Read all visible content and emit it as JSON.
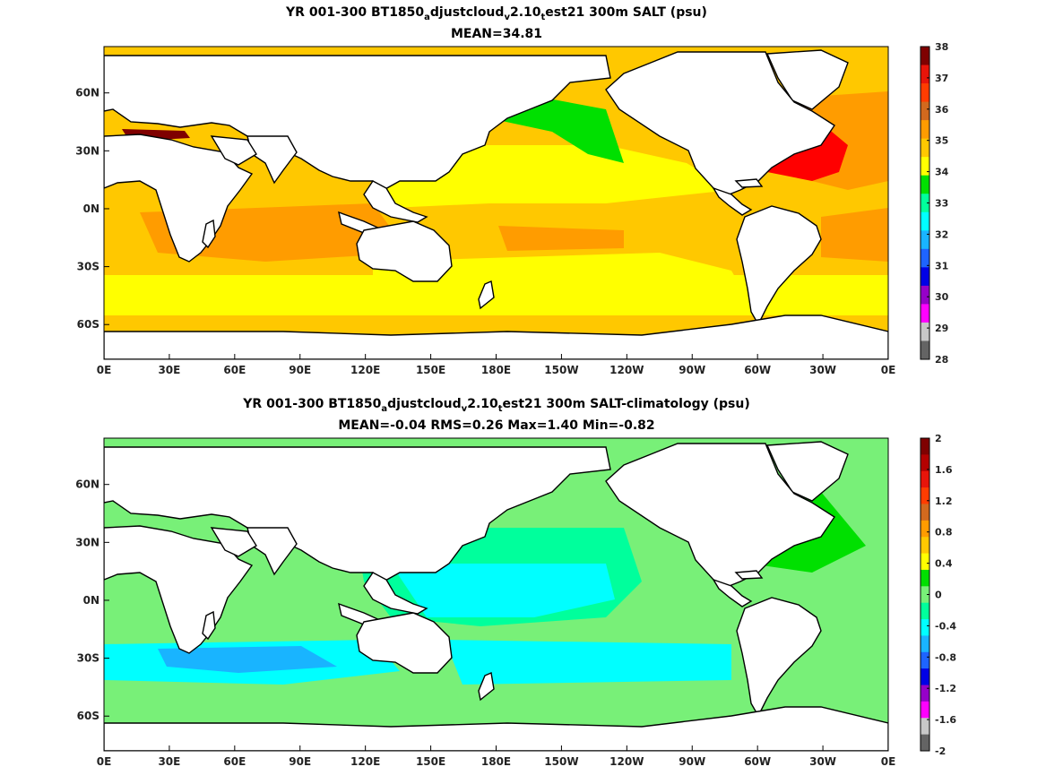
{
  "panels": [
    {
      "title_parts": [
        "YR 001-300 BT1850",
        "a",
        "djustcloud",
        "v",
        "2.10",
        "t",
        "est21 300m SALT (psu)"
      ],
      "subtitle": "MEAN=34.81"
    },
    {
      "title_parts": [
        "YR 001-300 BT1850",
        "a",
        "djustcloud",
        "v",
        "2.10",
        "t",
        "est21 300m SALT-climatology (psu)"
      ],
      "subtitle": "MEAN=-0.04   RMS=0.26   Max=1.40   Min=-0.82"
    }
  ],
  "x_ticks": [
    "0E",
    "30E",
    "60E",
    "90E",
    "120E",
    "150E",
    "180E",
    "150W",
    "120W",
    "90W",
    "60W",
    "30W",
    "0E"
  ],
  "y_ticks": [
    "60N",
    "30N",
    "0N",
    "30S",
    "60S"
  ],
  "colorbar_top": {
    "labels": [
      "38",
      "37",
      "36",
      "35",
      "34",
      "33",
      "32",
      "31",
      "30",
      "29",
      "28"
    ],
    "colors": [
      "#7f0000",
      "#e8140a",
      "#ff3c00",
      "#d2691e",
      "#ff9c00",
      "#ffc800",
      "#ffff00",
      "#00e000",
      "#00ff9c",
      "#00ffff",
      "#19b4ff",
      "#1e64ff",
      "#0000e6",
      "#9600c8",
      "#ff00ff",
      "#c8c8c8",
      "#646464"
    ]
  },
  "colorbar_bottom": {
    "labels": [
      "2",
      "1.6",
      "1.2",
      "0.8",
      "0.4",
      "0",
      "-0.4",
      "-0.8",
      "-1.2",
      "-1.6",
      "-2"
    ],
    "colors": [
      "#7f0000",
      "#b40000",
      "#e8140a",
      "#ff3c00",
      "#d2691e",
      "#ff9c00",
      "#ffc800",
      "#ffff00",
      "#00e000",
      "#78f078",
      "#00ff9c",
      "#00ffff",
      "#19b4ff",
      "#1e64ff",
      "#0000e6",
      "#9600c8",
      "#ff00ff",
      "#c8c8c8",
      "#646464"
    ]
  },
  "map_colors": {
    "ocean_top_main": "#ffc800",
    "ocean_top_tropical": "#ffff00",
    "ocean_top_salty": "#ff9c00",
    "ocean_top_north_atlantic": "#ff0000",
    "ocean_top_pacific_fresh": "#00e000",
    "ocean_bottom_main": "#78f078",
    "ocean_bottom_negative": "#00ff9c",
    "ocean_bottom_cyan": "#00ffff",
    "ocean_bottom_blue": "#19b4ff",
    "land": "#ffffff"
  }
}
